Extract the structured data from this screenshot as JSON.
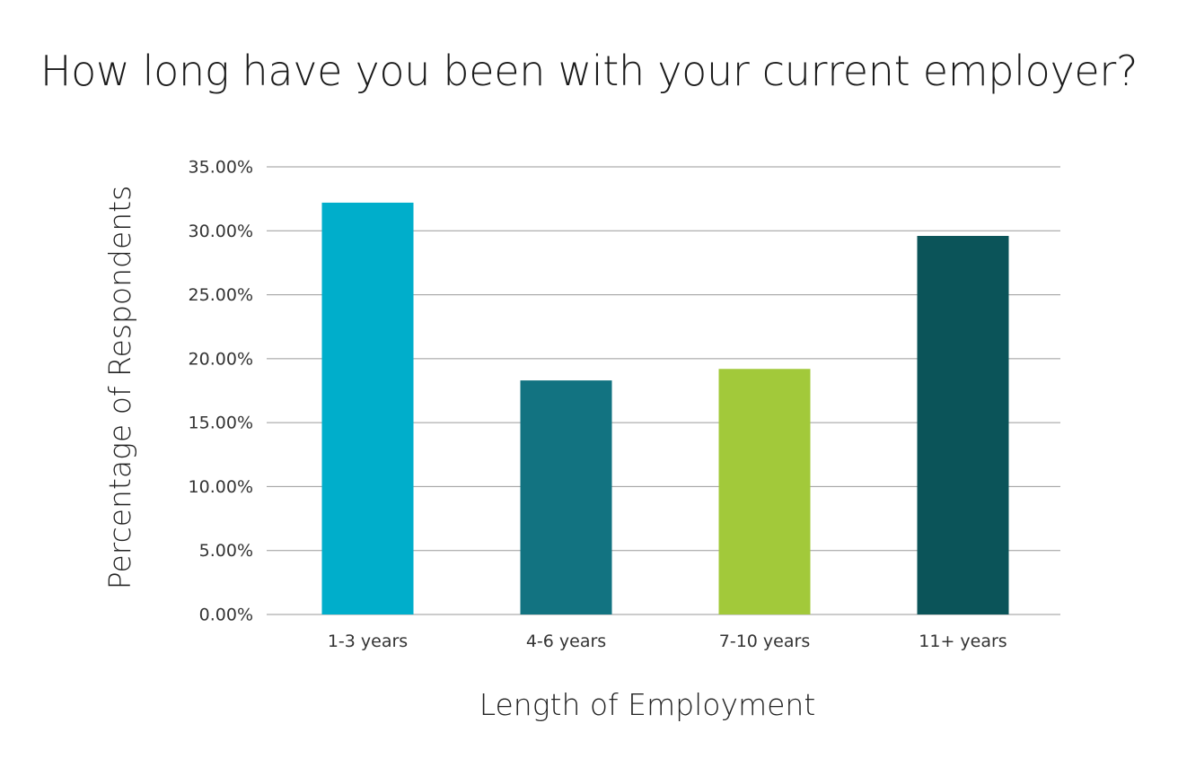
{
  "chart_data": {
    "type": "bar",
    "title": "How long have you been with your current employer?",
    "xlabel": "Length of Employment",
    "ylabel": "Percentage of Respondents",
    "categories": [
      "1-3 years",
      "4-6 years",
      "7-10 years",
      "11+ years"
    ],
    "values": [
      32.2,
      18.3,
      19.2,
      29.6
    ],
    "ylim": [
      0,
      35
    ],
    "yticks": [
      0,
      5,
      10,
      15,
      20,
      25,
      30,
      35
    ],
    "ytick_labels": [
      "0.00%",
      "5.00%",
      "10.00%",
      "15.00%",
      "20.00%",
      "25.00%",
      "30.00%",
      "35.00%"
    ],
    "colors": [
      "#00aecb",
      "#127381",
      "#a2c93a",
      "#0b5459"
    ],
    "grid": true,
    "legend": "none"
  }
}
